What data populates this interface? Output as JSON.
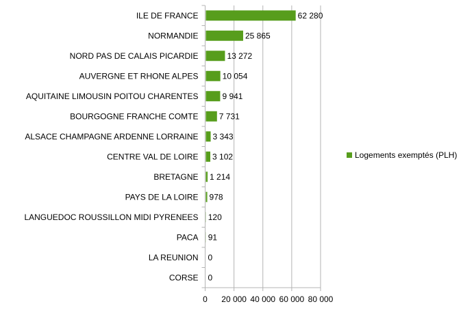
{
  "chart_data": {
    "type": "bar",
    "orientation": "horizontal",
    "title": "",
    "xlabel": "",
    "ylabel": "",
    "categories": [
      "ILE DE FRANCE",
      "NORMANDIE",
      "NORD PAS DE CALAIS PICARDIE",
      "AUVERGNE ET RHONE ALPES",
      "AQUITAINE LIMOUSIN POITOU CHARENTES",
      "BOURGOGNE FRANCHE COMTE",
      "ALSACE CHAMPAGNE ARDENNE LORRAINE",
      "CENTRE VAL DE LOIRE",
      "BRETAGNE",
      "PAYS DE LA LOIRE",
      "LANGUEDOC ROUSSILLON MIDI PYRENEES",
      "PACA",
      "LA REUNION",
      "CORSE"
    ],
    "series": [
      {
        "name": "Logements exemptés (PLH)",
        "color": "#579d1c",
        "values": [
          62280,
          25865,
          13272,
          10054,
          9941,
          7731,
          3343,
          3102,
          1214,
          978,
          120,
          91,
          0,
          0
        ],
        "labels": [
          "62 280",
          "25 865",
          "13 272",
          "10 054",
          "9 941",
          "7 731",
          "3 343",
          "3 102",
          "1 214",
          "978",
          "120",
          "91",
          "0",
          "0"
        ]
      }
    ],
    "xlim": [
      0,
      80000
    ],
    "xticks": [
      0,
      20000,
      40000,
      60000,
      80000
    ],
    "xtick_labels": [
      "0",
      "20 000",
      "40 000",
      "60 000",
      "80 000"
    ],
    "grid": true,
    "legend_position": "right"
  }
}
